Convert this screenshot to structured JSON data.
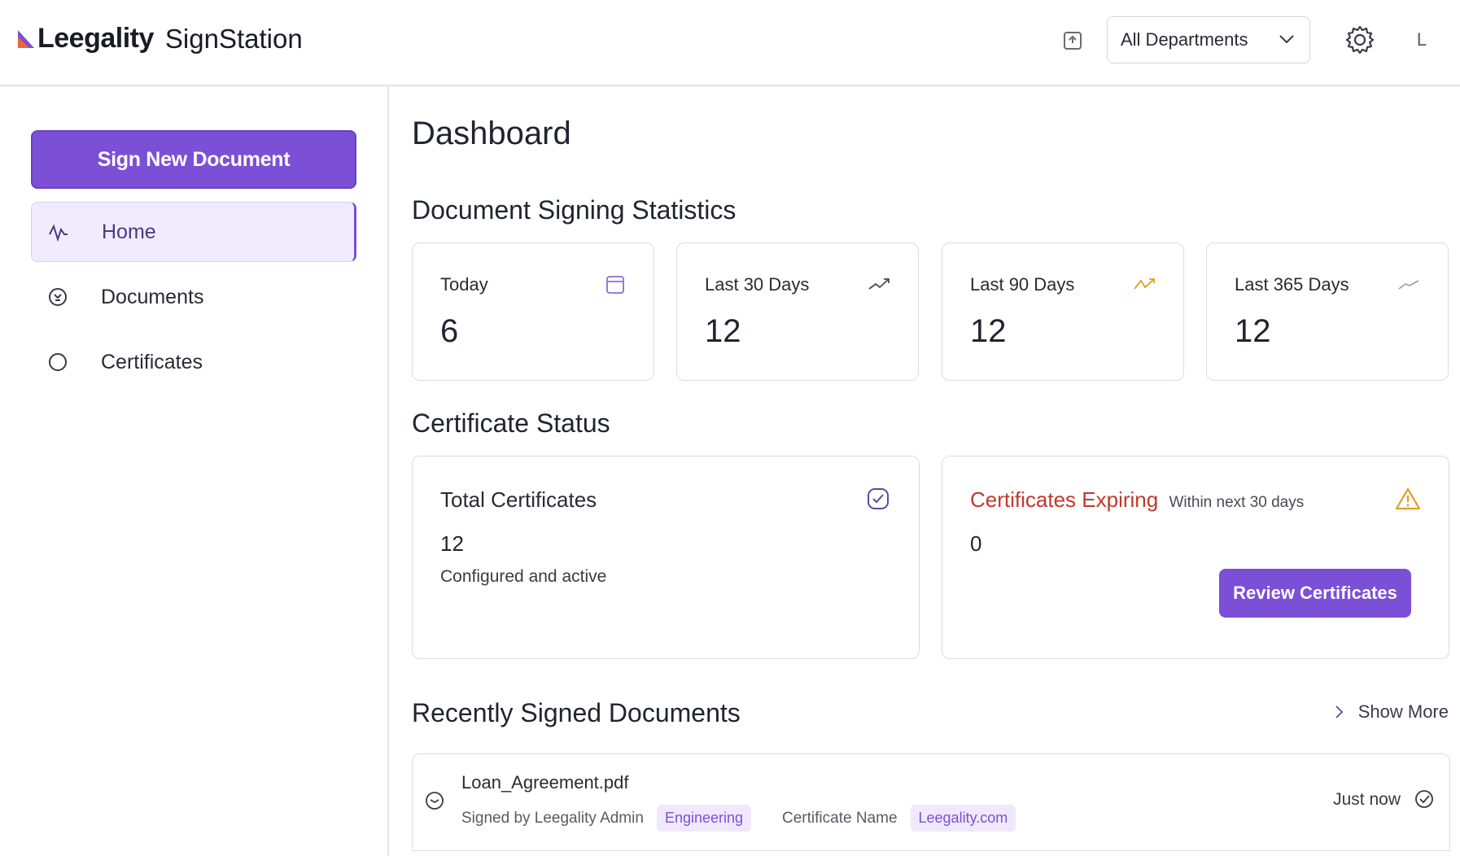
{
  "header": {
    "brand": "Leegality",
    "product": "SignStation",
    "department_select": {
      "value": "All Departments"
    },
    "avatar_initial": "L",
    "icons": [
      "upload-box-icon",
      "chevron-down-icon",
      "gear-icon"
    ]
  },
  "sidebar": {
    "primary_action": "Sign New Document",
    "items": [
      {
        "label": "Home",
        "icon": "activity-icon",
        "active": true
      },
      {
        "label": "Documents",
        "icon": "document-icon",
        "active": false
      },
      {
        "label": "Certificates",
        "icon": "circle-icon",
        "active": false
      }
    ]
  },
  "main": {
    "title": "Dashboard",
    "stats_section_title": "Document Signing Statistics",
    "stats": [
      {
        "label": "Today",
        "value": "6",
        "icon": "calendar-icon"
      },
      {
        "label": "Last 30 Days",
        "value": "12",
        "icon": "trend-up-icon"
      },
      {
        "label": "Last 90 Days",
        "value": "12",
        "icon": "trend-up-icon"
      },
      {
        "label": "Last 365 Days",
        "value": "12",
        "icon": "trend-up-icon"
      }
    ],
    "cert_section_title": "Certificate Status",
    "cert_total": {
      "label": "Total Certificates",
      "value": "12",
      "sub": "Configured and active",
      "icon": "check-badge-icon"
    },
    "cert_expiring": {
      "label": "Certificates Expiring",
      "sub_label": "Within next 30 days",
      "value": "0",
      "action": "Review Certificates",
      "icon": "warning-icon",
      "color": "#c0392b"
    },
    "recent_section_title": "Recently Signed Documents",
    "show_more": "Show More",
    "recent_docs": [
      {
        "filename": "Loan_Agreement.pdf",
        "signed_by_label": "Signed by Leegality Admin",
        "signed_by_tag": "Engineering",
        "cert_label": "Certificate Name",
        "cert_tag": "Leegality.com",
        "time": "Just now"
      }
    ]
  },
  "colors": {
    "accent": "#7b4fd6",
    "warning": "#e0a020",
    "danger": "#c0392b"
  }
}
